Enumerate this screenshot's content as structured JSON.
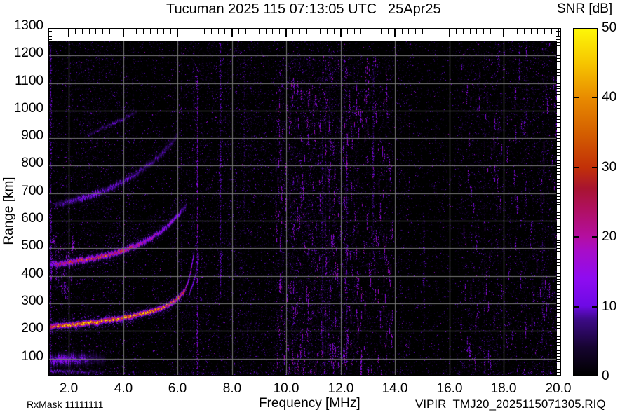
{
  "footer": {
    "rx_mask": "RxMask 11111111",
    "file_id": "VIPIR  TMJ20_2025115071305.RIQ"
  },
  "chart_data": {
    "type": "heatmap",
    "title": "Tucuman 2025 115 07:13:05 UTC",
    "date": "25Apr25",
    "xlabel": "Frequency [MHz]",
    "ylabel": "Range [km]",
    "xlim": [
      1.28,
      20.05
    ],
    "ylim": [
      40,
      1300
    ],
    "xticks": [
      2,
      4,
      6,
      8,
      10,
      12,
      14,
      16,
      18,
      20
    ],
    "xtick_labels": [
      "2.0",
      "4.0",
      "6.0",
      "8.0",
      "10.0",
      "12.0",
      "14.0",
      "16.0",
      "18.0",
      "20.0"
    ],
    "yticks": [
      100,
      200,
      300,
      400,
      500,
      600,
      700,
      800,
      900,
      1000,
      1100,
      1200,
      1300
    ],
    "grid": true,
    "grid_color": "#7a7a7a",
    "background": "#000000",
    "data_top_km": 1253,
    "colorbar": {
      "label": "SNR [dB]",
      "min": 0,
      "max": 50,
      "ticks": [
        0,
        10,
        20,
        30,
        40,
        50
      ],
      "position": "right",
      "stops": [
        [
          0,
          "#000000"
        ],
        [
          4,
          "#160430"
        ],
        [
          8,
          "#3c0a86"
        ],
        [
          10,
          "#6e0ae6"
        ],
        [
          14,
          "#8f0cf0"
        ],
        [
          18,
          "#a80dc8"
        ],
        [
          20,
          "#b40ea0"
        ],
        [
          24,
          "#b01060"
        ],
        [
          27,
          "#a81430"
        ],
        [
          30,
          "#c23008"
        ],
        [
          35,
          "#d45f00"
        ],
        [
          40,
          "#e88a00"
        ],
        [
          45,
          "#f6c400"
        ],
        [
          50,
          "#fdf608"
        ]
      ]
    },
    "traces": [
      {
        "name": "F-layer 1st hop main trace",
        "snr": 46,
        "width_km": 11,
        "fuzz": 1,
        "points": [
          [
            1.3,
            216,
            0.8
          ],
          [
            2,
            222,
            1
          ],
          [
            2.5,
            227,
            1
          ],
          [
            3,
            233,
            1
          ],
          [
            3.5,
            240,
            1
          ],
          [
            4,
            249,
            1
          ],
          [
            4.5,
            259,
            0.95
          ],
          [
            5,
            271,
            0.95
          ],
          [
            5.4,
            284,
            0.9
          ],
          [
            5.8,
            303,
            0.85
          ],
          [
            6.05,
            322,
            0.75
          ],
          [
            6.25,
            347,
            0.65
          ]
        ]
      },
      {
        "name": "F-layer cusp O-mode",
        "snr": 30,
        "width_km": 5,
        "fuzz": 1,
        "points": [
          [
            6.25,
            347,
            0.7
          ],
          [
            6.38,
            380,
            0.65
          ],
          [
            6.48,
            420,
            0.6
          ],
          [
            6.55,
            458,
            0.5
          ],
          [
            6.59,
            482,
            0.3
          ]
        ]
      },
      {
        "name": "F-layer cusp X-mode",
        "snr": 22,
        "width_km": 4,
        "fuzz": 1,
        "points": [
          [
            6.42,
            332,
            0.6
          ],
          [
            6.55,
            368,
            0.6
          ],
          [
            6.66,
            408,
            0.55
          ],
          [
            6.74,
            452,
            0.45
          ],
          [
            6.78,
            478,
            0.25
          ]
        ]
      },
      {
        "name": "2nd hop trace",
        "snr": 31,
        "width_km": 13,
        "fuzz": 1.4,
        "points": [
          [
            1.3,
            442,
            0.6
          ],
          [
            2,
            450,
            0.85
          ],
          [
            2.5,
            458,
            1
          ],
          [
            3,
            467,
            1
          ],
          [
            3.5,
            478,
            0.95
          ],
          [
            4,
            493,
            0.9
          ],
          [
            4.5,
            512,
            0.75
          ],
          [
            5,
            537,
            0.65
          ],
          [
            5.4,
            563,
            0.55
          ],
          [
            5.8,
            598,
            0.5
          ],
          [
            6.1,
            632,
            0.4
          ],
          [
            6.3,
            658,
            0.25
          ]
        ],
        "spread_above": {
          "from_f": 3.4,
          "km": 70,
          "snr": 13
        }
      },
      {
        "name": "3rd hop trace",
        "snr": 17,
        "width_km": 15,
        "fuzz": 2,
        "points": [
          [
            1.5,
            660,
            0.4
          ],
          [
            2,
            670,
            0.6
          ],
          [
            2.5,
            683,
            0.7
          ],
          [
            3,
            699,
            0.75
          ],
          [
            3.5,
            719,
            0.7
          ],
          [
            4,
            744,
            0.65
          ],
          [
            4.5,
            774,
            0.55
          ],
          [
            5,
            810,
            0.5
          ],
          [
            5.4,
            843,
            0.5
          ],
          [
            5.75,
            880,
            0.4
          ],
          [
            6,
            908,
            0.25
          ]
        ],
        "spread_above": {
          "from_f": 4.6,
          "km": 40,
          "snr": 9
        }
      },
      {
        "name": "4th hop partial trace",
        "snr": 13,
        "width_km": 9,
        "fuzz": 1.5,
        "points": [
          [
            2.7,
            912,
            0.4
          ],
          [
            3.2,
            936,
            0.6
          ],
          [
            3.7,
            958,
            0.65
          ],
          [
            4.2,
            982,
            0.55
          ],
          [
            4.5,
            996,
            0.3
          ]
        ]
      },
      {
        "name": "E-region scatter",
        "snr": 15,
        "width_km": 26,
        "fuzz": 3,
        "points": [
          [
            1.3,
            92,
            0.8
          ],
          [
            1.7,
            97,
            1
          ],
          [
            2.1,
            100,
            0.85
          ],
          [
            2.5,
            101,
            0.65
          ],
          [
            2.9,
            100,
            0.45
          ],
          [
            3.3,
            97,
            0.3
          ]
        ]
      },
      {
        "name": "near-ground clutter",
        "snr": 12,
        "width_km": 7,
        "fuzz": 1.5,
        "points": [
          [
            1.3,
            55,
            0.9
          ],
          [
            2,
            53,
            0.8
          ],
          [
            2.7,
            52,
            0.55
          ],
          [
            3.3,
            52,
            0.35
          ]
        ]
      }
    ],
    "interference_bands": [
      {
        "f": 1.33,
        "r0": 40,
        "r1": 1250,
        "gain": 2.2
      },
      {
        "f": 6.72,
        "r0": 40,
        "r1": 1160,
        "gain": 2.8
      },
      {
        "f": 7.57,
        "r0": 320,
        "r1": 1250,
        "gain": 1.9
      },
      {
        "f": 8.45,
        "r0": 550,
        "r1": 1200,
        "gain": 1.2
      },
      {
        "f": 11.3,
        "r0": 100,
        "r1": 900,
        "gain": 1.3
      },
      {
        "f": 12.2,
        "r0": 60,
        "r1": 1000,
        "gain": 1.6
      },
      {
        "f": 13.2,
        "r0": 450,
        "r1": 1180,
        "gain": 1.6
      },
      {
        "f": 15.05,
        "r0": 130,
        "r1": 620,
        "gain": 1.6
      },
      {
        "f": 17.8,
        "r0": 1150,
        "r1": 1250,
        "gain": 2.0
      },
      {
        "f": 18.55,
        "r0": 1100,
        "r1": 1240,
        "gain": 1.7
      },
      {
        "f": 18.85,
        "r0": 900,
        "r1": 1250,
        "gain": 1.5
      },
      {
        "f": 19.4,
        "r0": 150,
        "r1": 600,
        "gain": 1.3
      }
    ],
    "diffuse_regions": [
      {
        "f0": 9.6,
        "f1": 13.9,
        "r0": 60,
        "r1": 1200,
        "boost": 1.9
      },
      {
        "f0": 16.4,
        "f1": 20.0,
        "r0": 60,
        "r1": 1250,
        "boost": 1.35
      },
      {
        "f0": 1.3,
        "f1": 2.2,
        "r0": 350,
        "r1": 560,
        "boost": 1.4
      }
    ],
    "noise": {
      "seed": 20251150,
      "dim_density": 0.1,
      "mid_density": 0.028,
      "bright_density": 0.0045,
      "bottom_dust_km": 55
    }
  }
}
